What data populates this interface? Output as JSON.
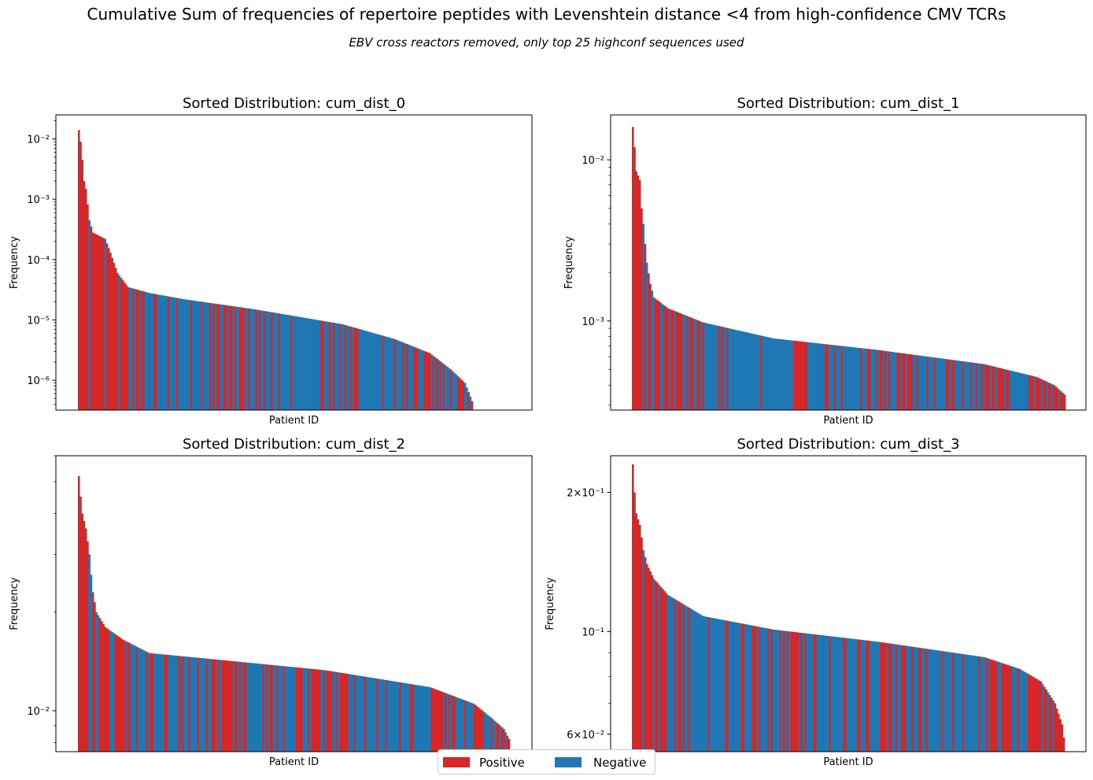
{
  "suptitle": "Cumulative Sum of frequencies of repertoire peptides with Levenshtein distance <4 from high-confidence CMV TCRs",
  "subtitle": "EBV cross reactors removed, only top 25 highconf sequences used",
  "legend": {
    "position": "lower-center",
    "items": [
      {
        "label": "Positive",
        "color": "#d62728"
      },
      {
        "label": "Negative",
        "color": "#1f77b4"
      }
    ]
  },
  "chart_data": [
    {
      "type": "bar",
      "title": "Sorted Distribution: cum_dist_0",
      "xlabel": "Patient ID",
      "ylabel": "Frequency",
      "yscale": "log",
      "ylim": [
        3.2e-07,
        0.025
      ],
      "yticks": [
        {
          "value": 1e-06,
          "label": "10⁻⁶"
        },
        {
          "value": 1e-05,
          "label": "10⁻⁵"
        },
        {
          "value": 0.0001,
          "label": "10⁻⁴"
        },
        {
          "value": 0.001,
          "label": "10⁻³"
        },
        {
          "value": 0.01,
          "label": "10⁻²"
        }
      ],
      "bar_count": 225,
      "curve": [
        [
          0,
          0.014
        ],
        [
          1,
          0.009
        ],
        [
          2,
          0.0045
        ],
        [
          3,
          0.002
        ],
        [
          4,
          0.0015
        ],
        [
          6,
          0.00045
        ],
        [
          8,
          0.00028
        ],
        [
          15,
          0.00022
        ],
        [
          18,
          0.00013
        ],
        [
          22,
          6e-05
        ],
        [
          28,
          3.5e-05
        ],
        [
          40,
          2.8e-05
        ],
        [
          60,
          2.2e-05
        ],
        [
          100,
          1.5e-05
        ],
        [
          150,
          8.5e-06
        ],
        [
          180,
          4.8e-06
        ],
        [
          200,
          2.8e-06
        ],
        [
          212,
          1.5e-06
        ],
        [
          220,
          9e-07
        ],
        [
          224,
          4.5e-07
        ]
      ],
      "negative_ranges": [
        [
          35,
          80
        ],
        [
          95,
          150
        ],
        [
          160,
          190
        ],
        [
          205,
          215
        ]
      ]
    },
    {
      "type": "bar",
      "title": "Sorted Distribution: cum_dist_1",
      "xlabel": "Patient ID",
      "ylabel": "Frequency",
      "yscale": "log",
      "ylim": [
        0.00028,
        0.019
      ],
      "yticks": [
        {
          "value": 0.001,
          "label": "10⁻³"
        },
        {
          "value": 0.01,
          "label": "10⁻²"
        }
      ],
      "bar_count": 247,
      "curve": [
        [
          0,
          0.016
        ],
        [
          1,
          0.012
        ],
        [
          2,
          0.0085
        ],
        [
          4,
          0.0075
        ],
        [
          5,
          0.005
        ],
        [
          6,
          0.004
        ],
        [
          7,
          0.003
        ],
        [
          8,
          0.0023
        ],
        [
          10,
          0.0017
        ],
        [
          12,
          0.0014
        ],
        [
          20,
          0.0012
        ],
        [
          40,
          0.00098
        ],
        [
          80,
          0.00078
        ],
        [
          140,
          0.00066
        ],
        [
          200,
          0.00054
        ],
        [
          230,
          0.00045
        ],
        [
          240,
          0.0004
        ],
        [
          246,
          0.00035
        ]
      ],
      "negative_ranges": [
        [
          40,
          90
        ],
        [
          100,
          140
        ],
        [
          160,
          200
        ],
        [
          215,
          225
        ]
      ]
    },
    {
      "type": "bar",
      "title": "Sorted Distribution: cum_dist_2",
      "xlabel": "Patient ID",
      "ylabel": "Frequency",
      "yscale": "log",
      "ylim": [
        0.0075,
        0.06
      ],
      "yticks": [
        {
          "value": 0.01,
          "label": "10⁻²"
        }
      ],
      "bar_count": 246,
      "curve": [
        [
          0,
          0.052
        ],
        [
          1,
          0.045
        ],
        [
          2,
          0.04
        ],
        [
          4,
          0.036
        ],
        [
          6,
          0.03
        ],
        [
          7,
          0.026
        ],
        [
          8,
          0.023
        ],
        [
          10,
          0.02
        ],
        [
          15,
          0.018
        ],
        [
          25,
          0.0165
        ],
        [
          40,
          0.015
        ],
        [
          80,
          0.0143
        ],
        [
          140,
          0.0133
        ],
        [
          200,
          0.0118
        ],
        [
          225,
          0.0105
        ],
        [
          235,
          0.0095
        ],
        [
          242,
          0.0088
        ],
        [
          245,
          0.0082
        ]
      ],
      "negative_ranges": [
        [
          35,
          70
        ],
        [
          95,
          130
        ],
        [
          160,
          200
        ],
        [
          215,
          225
        ]
      ]
    },
    {
      "type": "bar",
      "title": "Sorted Distribution: cum_dist_3",
      "xlabel": "Patient ID",
      "ylabel": "Frequency",
      "yscale": "log",
      "ylim": [
        0.055,
        0.24
      ],
      "yticks": [
        {
          "value": 0.06,
          "label": "6×10⁻²"
        },
        {
          "value": 0.1,
          "label": "10⁻¹"
        },
        {
          "value": 0.2,
          "label": "2×10⁻¹"
        }
      ],
      "bar_count": 246,
      "curve": [
        [
          0,
          0.23
        ],
        [
          1,
          0.2
        ],
        [
          2,
          0.18
        ],
        [
          4,
          0.17
        ],
        [
          6,
          0.15
        ],
        [
          8,
          0.14
        ],
        [
          12,
          0.13
        ],
        [
          20,
          0.12
        ],
        [
          40,
          0.108
        ],
        [
          80,
          0.101
        ],
        [
          140,
          0.095
        ],
        [
          200,
          0.088
        ],
        [
          220,
          0.083
        ],
        [
          232,
          0.078
        ],
        [
          240,
          0.07
        ],
        [
          244,
          0.063
        ],
        [
          245,
          0.059
        ]
      ],
      "negative_ranges": [
        [
          30,
          75
        ],
        [
          100,
          140
        ],
        [
          160,
          200
        ],
        [
          215,
          225
        ]
      ]
    }
  ]
}
